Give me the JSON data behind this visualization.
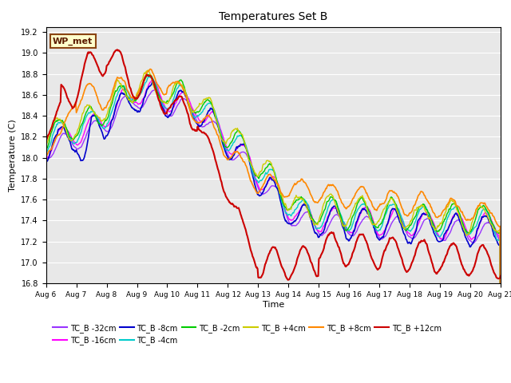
{
  "title": "Temperatures Set B",
  "xlabel": "Time",
  "ylabel": "Temperature (C)",
  "ylim": [
    16.8,
    19.25
  ],
  "xlim": [
    0,
    360
  ],
  "x_tick_labels": [
    "Aug 6",
    "Aug 7",
    "Aug 8",
    "Aug 9",
    "Aug 10",
    "Aug 11",
    "Aug 12",
    "Aug 13",
    "Aug 14",
    "Aug 15",
    "Aug 16",
    "Aug 17",
    "Aug 18",
    "Aug 19",
    "Aug 20",
    "Aug 21"
  ],
  "x_tick_positions": [
    0,
    24,
    48,
    72,
    96,
    120,
    144,
    168,
    192,
    216,
    240,
    264,
    288,
    312,
    336,
    360
  ],
  "series_order": [
    "TC_B -32cm",
    "TC_B -16cm",
    "TC_B -8cm",
    "TC_B -4cm",
    "TC_B -2cm",
    "TC_B +4cm",
    "TC_B +8cm",
    "TC_B +12cm"
  ],
  "series_colors": {
    "TC_B -32cm": "#9933FF",
    "TC_B -16cm": "#FF00FF",
    "TC_B -8cm": "#0000CC",
    "TC_B -4cm": "#00CCCC",
    "TC_B -2cm": "#00CC00",
    "TC_B +4cm": "#CCCC00",
    "TC_B +8cm": "#FF8800",
    "TC_B +12cm": "#CC0000"
  },
  "series_lw": {
    "TC_B -32cm": 1.0,
    "TC_B -16cm": 1.0,
    "TC_B -8cm": 1.2,
    "TC_B -4cm": 1.0,
    "TC_B -2cm": 1.0,
    "TC_B +4cm": 1.0,
    "TC_B +8cm": 1.2,
    "TC_B +12cm": 1.5
  },
  "bg_color": "#E8E8E8",
  "annotation_text": "WP_met",
  "annotation_bg": "#FFFFCC",
  "annotation_border": "#8B4513",
  "legend_ncol_row1": 6,
  "yticks": [
    16.8,
    17.0,
    17.2,
    17.4,
    17.6,
    17.8,
    18.0,
    18.2,
    18.4,
    18.6,
    18.8,
    19.0,
    19.2
  ]
}
